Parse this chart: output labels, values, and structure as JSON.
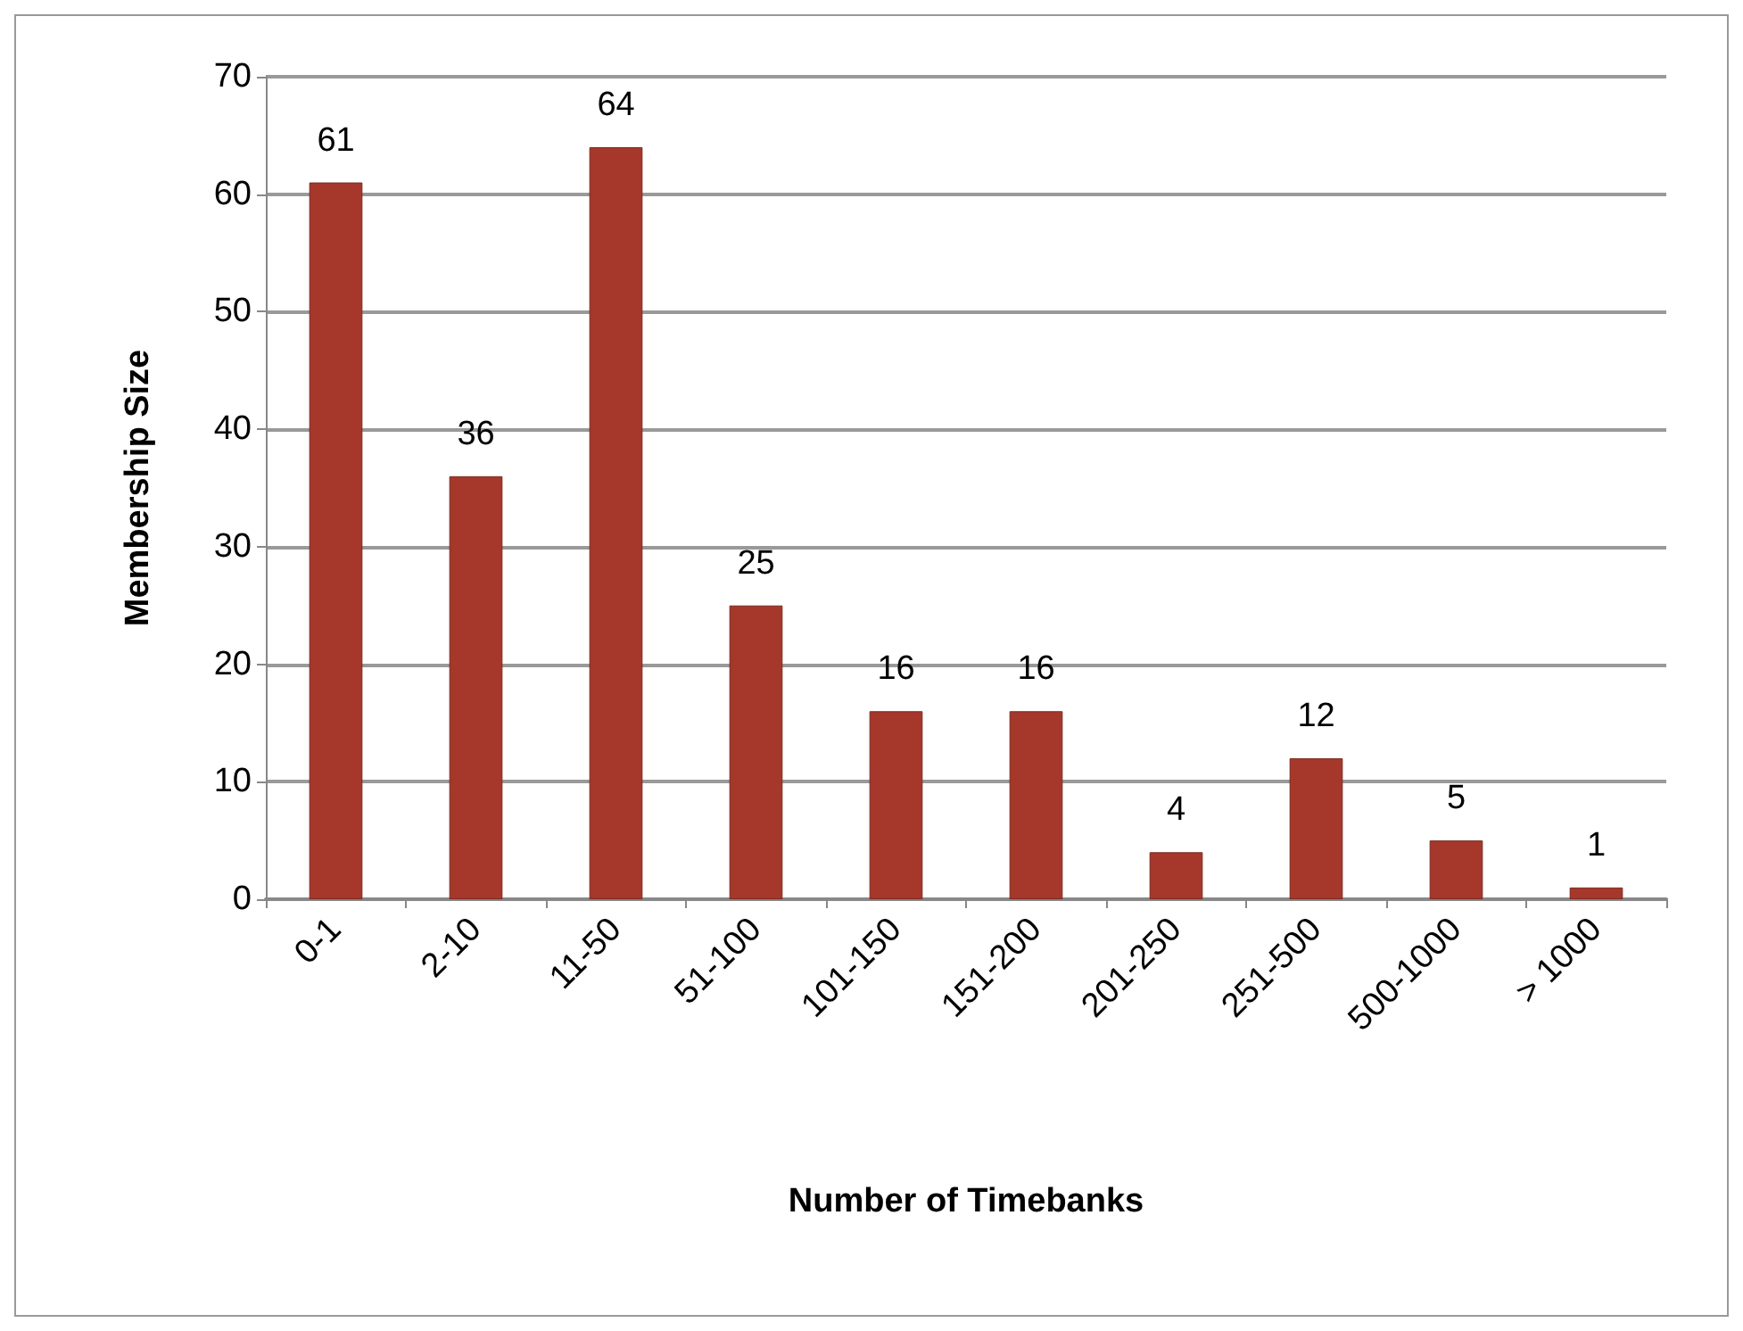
{
  "chart_data": {
    "type": "bar",
    "xlabel": "Number of Timebanks",
    "ylabel": "Membership Size",
    "categories": [
      "0-1",
      "2-10",
      "11-50",
      "51-100",
      "101-150",
      "151-200",
      "201-250",
      "251-500",
      "500-1000",
      "> 1000"
    ],
    "values": [
      61,
      36,
      64,
      25,
      16,
      16,
      4,
      12,
      5,
      1
    ],
    "color": "#a5372b",
    "ylim": [
      0,
      70
    ],
    "yticks": [
      0,
      10,
      20,
      30,
      40,
      50,
      60,
      70
    ],
    "grid": "y",
    "data_labels": true
  }
}
